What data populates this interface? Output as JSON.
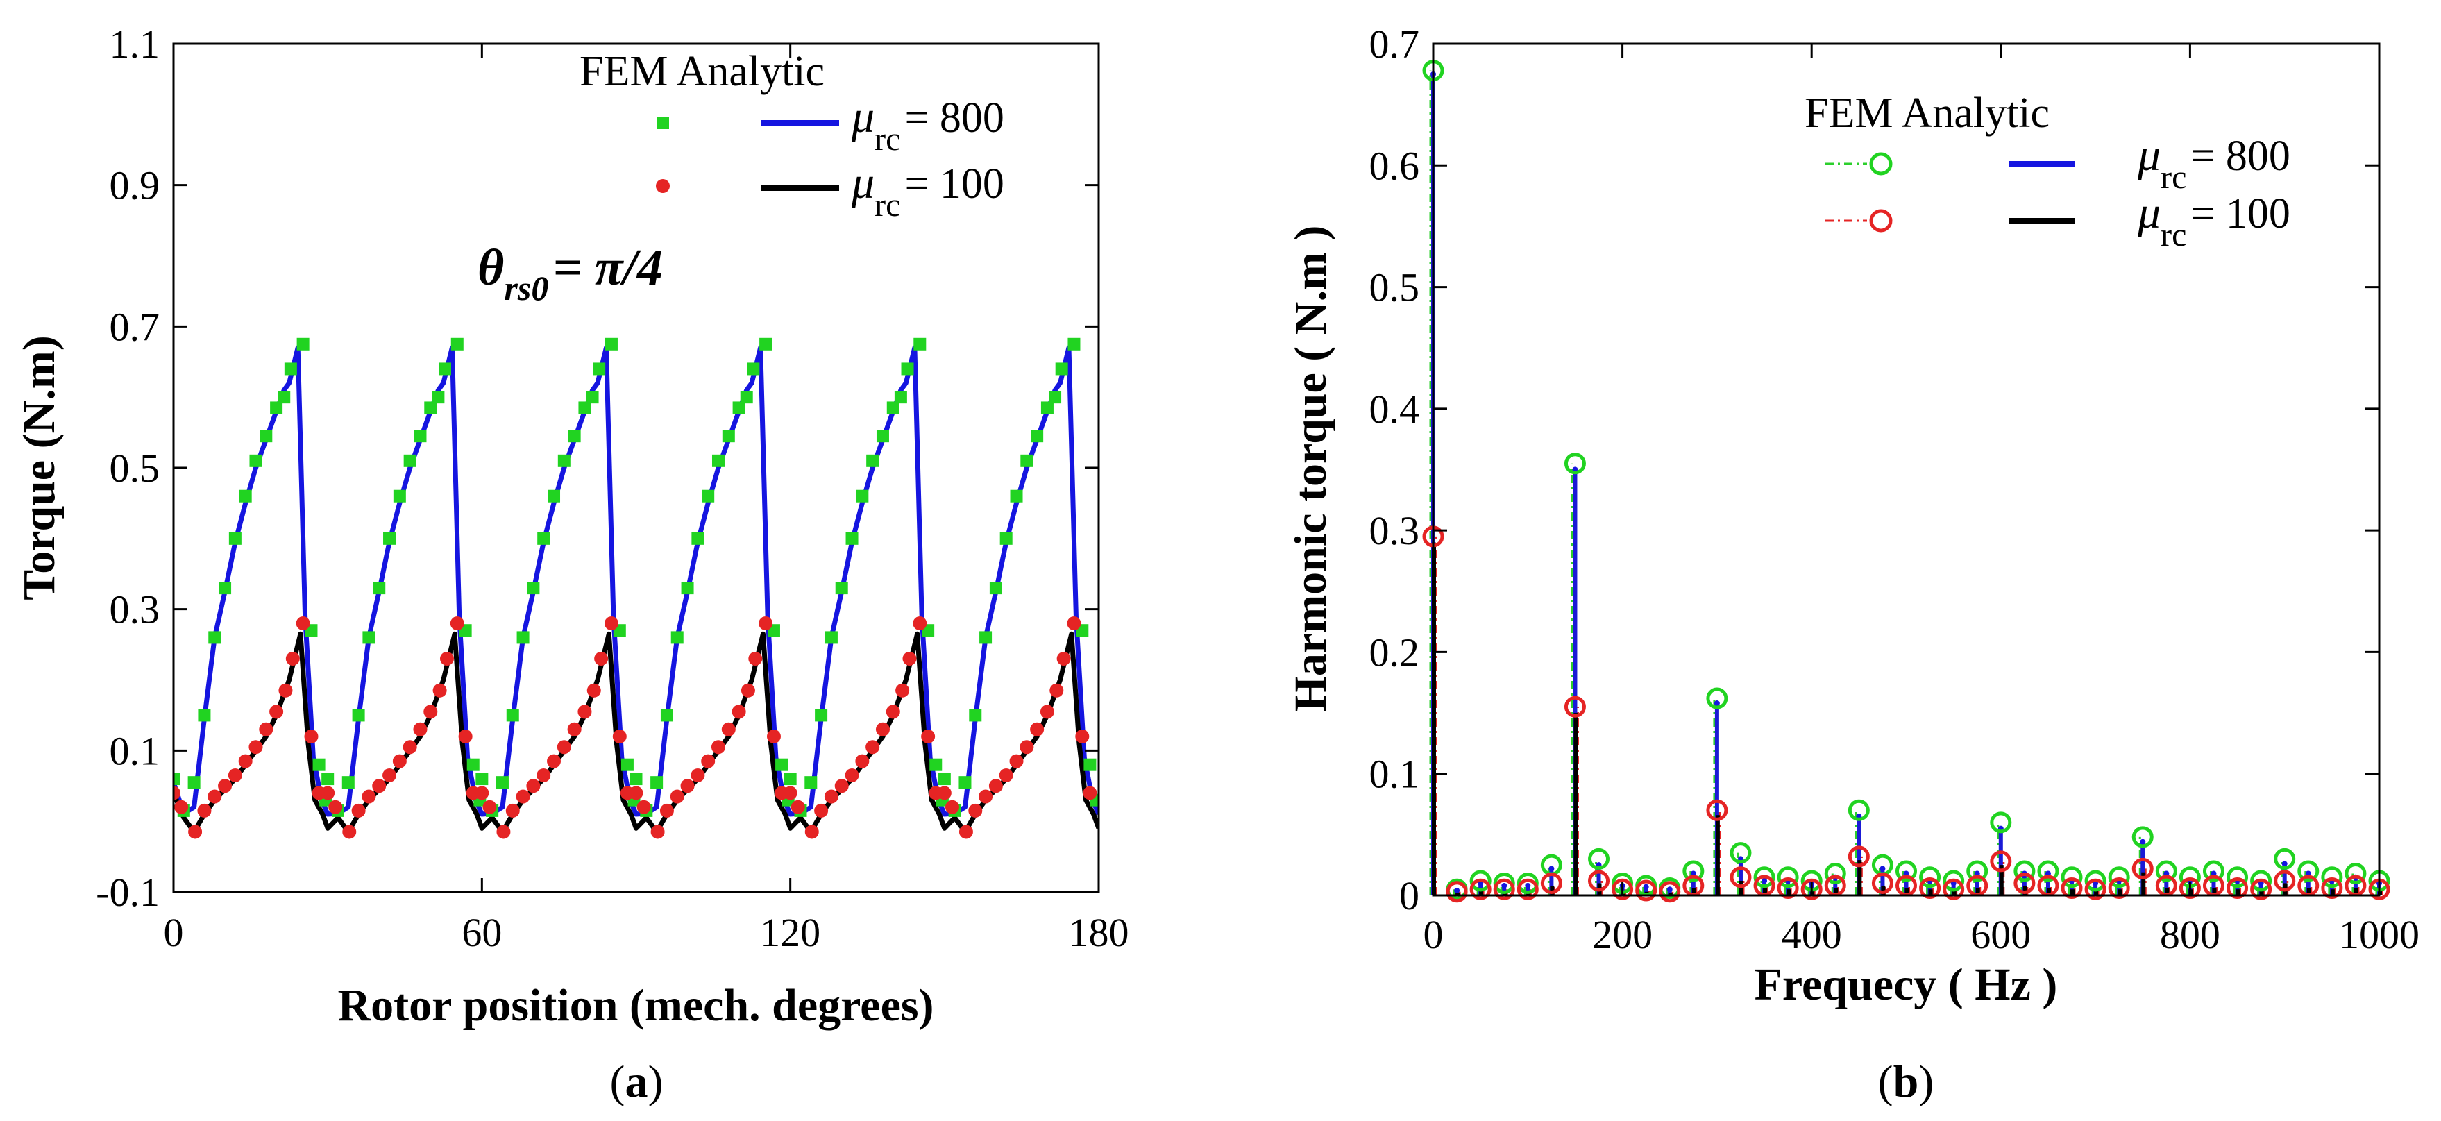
{
  "captions": {
    "a_open": "(",
    "a_letter": "a",
    "a_close": ")",
    "b_open": "(",
    "b_letter": "b",
    "b_close": ")"
  },
  "colors": {
    "fem_800": "#21d321",
    "fem_100": "#e52424",
    "an_800": "#1515e0",
    "an_100": "#000000",
    "stem_fem_800": "#2ccf2c",
    "stem_an_800": "#1a1ad6"
  },
  "chart_data": [
    {
      "type": "line",
      "panel": "a",
      "xlabel": "Rotor position (mech. degrees)",
      "ylabel": "Torque (N.m)",
      "xlim": [
        0,
        180
      ],
      "ylim": [
        -0.1,
        1.1
      ],
      "xticks": [
        0,
        60,
        120,
        180
      ],
      "xtick_labels": [
        "0",
        "60",
        "120",
        "180"
      ],
      "yticks": [
        -0.1,
        0.1,
        0.3,
        0.5,
        0.7,
        0.9,
        1.1
      ],
      "ytick_labels": [
        "-0.1",
        "0.1",
        "0.3",
        "0.5",
        "0.7",
        "0.9",
        "1.1"
      ],
      "annotation": {
        "main": "θ",
        "sub": "rs0",
        "rest": "= π/4"
      },
      "legend": {
        "header": "FEM Analytic",
        "entries": [
          {
            "mu": "μ",
            "sub": "rc",
            "value": "= 800"
          },
          {
            "mu": "μ",
            "sub": "rc",
            "value": "= 100"
          }
        ]
      },
      "period_deg": 30,
      "series": [
        {
          "group": "mu_rc = 800",
          "analytic_period": {
            "x": [
              0,
              2,
              4,
              6,
              8,
              10,
              12,
              14,
              16,
              18,
              20,
              21.5,
              22.5,
              24.2,
              25.6,
              27.2,
              28.8,
              30
            ],
            "y": [
              0.055,
              0.011,
              0.02,
              0.145,
              0.26,
              0.325,
              0.395,
              0.45,
              0.5,
              0.54,
              0.58,
              0.61,
              0.62,
              0.67,
              0.29,
              0.09,
              0.03,
              0.01
            ]
          },
          "fem_period": {
            "x": [
              0,
              2,
              4,
              6,
              8,
              10,
              12,
              14,
              16,
              18,
              20,
              21.5,
              22.8,
              25.2,
              26.8,
              28.3,
              29.6
            ],
            "y": [
              0.06,
              0.015,
              0.055,
              0.15,
              0.26,
              0.33,
              0.4,
              0.46,
              0.51,
              0.545,
              0.585,
              0.6,
              0.64,
              0.675,
              0.27,
              0.08,
              0.03
            ]
          }
        },
        {
          "group": "mu_rc = 100",
          "analytic_period": {
            "x": [
              0,
              2,
              4,
              6,
              8,
              10,
              12,
              14,
              16,
              18,
              20,
              21.5,
              22.5,
              24.7,
              26.2,
              27.5,
              29,
              30
            ],
            "y": [
              0.04,
              0.005,
              -0.015,
              0.01,
              0.03,
              0.045,
              0.06,
              0.08,
              0.1,
              0.12,
              0.15,
              0.18,
              0.2,
              0.265,
              0.11,
              0.03,
              0.01,
              -0.01
            ]
          },
          "fem_period": {
            "x": [
              0,
              1.5,
              4.2,
              6,
              8,
              10,
              12,
              14,
              16,
              18,
              20,
              21.8,
              23.2,
              25.2,
              26.8,
              28.3
            ],
            "y": [
              0.04,
              0.02,
              -0.015,
              0.015,
              0.035,
              0.05,
              0.065,
              0.085,
              0.105,
              0.13,
              0.155,
              0.185,
              0.23,
              0.28,
              0.12,
              0.04
            ]
          }
        }
      ]
    },
    {
      "type": "stem",
      "panel": "b",
      "xlabel": "Frequecy ( Hz )",
      "ylabel": "Harmonic torque ( N.m )",
      "xlim": [
        0,
        1000
      ],
      "ylim": [
        0,
        0.7
      ],
      "xticks": [
        0,
        200,
        400,
        600,
        800,
        1000
      ],
      "xtick_labels": [
        "0",
        "200",
        "400",
        "600",
        "800",
        "1000"
      ],
      "yticks": [
        0,
        0.1,
        0.2,
        0.3,
        0.4,
        0.5,
        0.6,
        0.7
      ],
      "ytick_labels": [
        "0",
        "0.1",
        "0.2",
        "0.3",
        "0.4",
        "0.5",
        "0.6",
        "0.7"
      ],
      "legend": {
        "header": "FEM Analytic",
        "entries": [
          {
            "mu": "μ",
            "sub": "rc",
            "value": "= 800"
          },
          {
            "mu": "μ",
            "sub": "rc",
            "value": "= 100"
          }
        ]
      },
      "x": [
        0,
        25,
        50,
        75,
        100,
        125,
        150,
        175,
        200,
        225,
        250,
        275,
        300,
        325,
        350,
        375,
        400,
        425,
        450,
        475,
        500,
        525,
        550,
        575,
        600,
        625,
        650,
        675,
        700,
        725,
        750,
        775,
        800,
        825,
        850,
        875,
        900,
        925,
        950,
        975,
        1000
      ],
      "series": [
        {
          "name": "FEM μrc = 800",
          "values": [
            0.678,
            0.005,
            0.012,
            0.01,
            0.01,
            0.025,
            0.355,
            0.03,
            0.01,
            0.008,
            0.006,
            0.02,
            0.162,
            0.035,
            0.015,
            0.015,
            0.012,
            0.018,
            0.07,
            0.025,
            0.02,
            0.015,
            0.012,
            0.02,
            0.06,
            0.02,
            0.02,
            0.015,
            0.012,
            0.015,
            0.048,
            0.02,
            0.015,
            0.02,
            0.015,
            0.012,
            0.03,
            0.02,
            0.015,
            0.018,
            0.012
          ]
        },
        {
          "name": "FEM μrc = 100",
          "values": [
            0.295,
            0.003,
            0.005,
            0.005,
            0.005,
            0.01,
            0.155,
            0.012,
            0.005,
            0.004,
            0.003,
            0.008,
            0.07,
            0.015,
            0.008,
            0.006,
            0.005,
            0.008,
            0.032,
            0.01,
            0.008,
            0.006,
            0.005,
            0.008,
            0.028,
            0.01,
            0.008,
            0.006,
            0.005,
            0.006,
            0.022,
            0.008,
            0.006,
            0.008,
            0.006,
            0.005,
            0.012,
            0.008,
            0.006,
            0.008,
            0.005
          ]
        },
        {
          "name": "Analytic μrc = 800",
          "values": [
            0.675,
            0.004,
            0.01,
            0.008,
            0.008,
            0.022,
            0.35,
            0.025,
            0.008,
            0.007,
            0.005,
            0.018,
            0.158,
            0.03,
            0.012,
            0.012,
            0.01,
            0.015,
            0.065,
            0.022,
            0.018,
            0.012,
            0.01,
            0.018,
            0.055,
            0.018,
            0.018,
            0.012,
            0.01,
            0.012,
            0.044,
            0.018,
            0.012,
            0.018,
            0.012,
            0.01,
            0.026,
            0.018,
            0.012,
            0.015,
            0.01
          ]
        },
        {
          "name": "Analytic μrc = 100",
          "values": [
            0.29,
            0.002,
            0.004,
            0.004,
            0.004,
            0.008,
            0.15,
            0.01,
            0.004,
            0.003,
            0.002,
            0.006,
            0.066,
            0.012,
            0.006,
            0.005,
            0.004,
            0.006,
            0.029,
            0.008,
            0.006,
            0.005,
            0.004,
            0.006,
            0.025,
            0.008,
            0.006,
            0.005,
            0.004,
            0.005,
            0.019,
            0.006,
            0.005,
            0.006,
            0.005,
            0.004,
            0.01,
            0.006,
            0.005,
            0.006,
            0.004
          ]
        }
      ]
    }
  ]
}
